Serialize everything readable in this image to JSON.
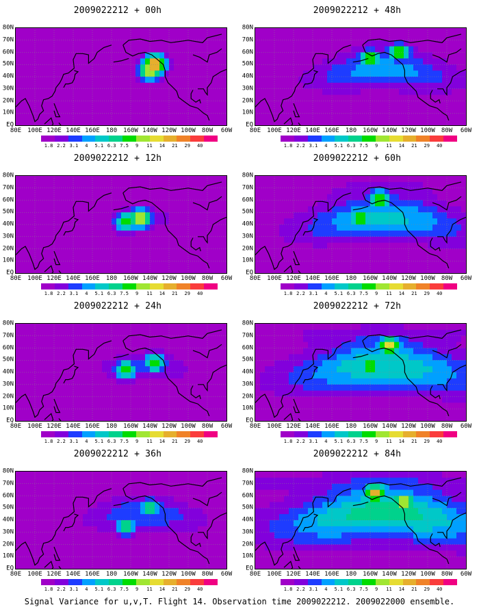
{
  "caption": "Signal Variance for u,v,T. Flight 14. Observation time 2009022212. 2009022000 ensemble.",
  "axes": {
    "y_labels": [
      "80N",
      "70N",
      "60N",
      "50N",
      "40N",
      "30N",
      "20N",
      "10N",
      "EQ"
    ],
    "x_labels": [
      "80E",
      "100E",
      "120E",
      "140E",
      "160E",
      "180",
      "160W",
      "140W",
      "120W",
      "100W",
      "80W",
      "60W"
    ]
  },
  "colorbar": {
    "labels": [
      "1.8",
      "2.2",
      "3.1",
      "4",
      "5.1",
      "6.3",
      "7.5",
      "9",
      "11",
      "14",
      "21",
      "29",
      "40"
    ],
    "colors": [
      "#a000c8",
      "#8200dc",
      "#1e3cff",
      "#00a0ff",
      "#00c8c8",
      "#00d28c",
      "#00dc00",
      "#a0e632",
      "#e6dc32",
      "#e6af2d",
      "#f08228",
      "#fa3c3c",
      "#f00082"
    ]
  },
  "chart_data": [
    {
      "type": "heatmap",
      "title": "2009022212 + 00h",
      "lead_hours": 0,
      "max_level": "40",
      "hotspots": [
        {
          "lon": -135,
          "lat": 50,
          "level": "29"
        },
        {
          "lon": -140,
          "lat": 45,
          "level": "14"
        }
      ]
    },
    {
      "type": "heatmap",
      "title": "2009022212 + 12h",
      "lead_hours": 12,
      "max_level": "21",
      "hotspots": [
        {
          "lon": -150,
          "lat": 45,
          "level": "14"
        },
        {
          "lon": -165,
          "lat": 42,
          "level": "9"
        }
      ]
    },
    {
      "type": "heatmap",
      "title": "2009022212 + 24h",
      "lead_hours": 24,
      "max_level": "14",
      "hotspots": [
        {
          "lon": -165,
          "lat": 42,
          "level": "9"
        },
        {
          "lon": -135,
          "lat": 48,
          "level": "9"
        }
      ]
    },
    {
      "type": "heatmap",
      "title": "2009022212 + 36h",
      "lead_hours": 36,
      "max_level": "11",
      "hotspots": [
        {
          "lon": -165,
          "lat": 35,
          "level": "7.5"
        },
        {
          "lon": -140,
          "lat": 50,
          "level": "7.5"
        }
      ]
    },
    {
      "type": "heatmap",
      "title": "2009022212 + 48h",
      "lead_hours": 48,
      "max_level": "11",
      "hotspots": [
        {
          "lon": -160,
          "lat": 55,
          "level": "9"
        },
        {
          "lon": -130,
          "lat": 60,
          "level": "9"
        }
      ]
    },
    {
      "type": "heatmap",
      "title": "2009022212 + 60h",
      "lead_hours": 60,
      "max_level": "14",
      "hotspots": [
        {
          "lon": -150,
          "lat": 60,
          "level": "11"
        },
        {
          "lon": -170,
          "lat": 45,
          "level": "9"
        }
      ]
    },
    {
      "type": "heatmap",
      "title": "2009022212 + 72h",
      "lead_hours": 72,
      "max_level": "21",
      "hotspots": [
        {
          "lon": -140,
          "lat": 62,
          "level": "14"
        },
        {
          "lon": -160,
          "lat": 45,
          "level": "11"
        }
      ]
    },
    {
      "type": "heatmap",
      "title": "2009022212 + 84h",
      "lead_hours": 84,
      "max_level": "29",
      "hotspots": [
        {
          "lon": -155,
          "lat": 62,
          "level": "21"
        },
        {
          "lon": -125,
          "lat": 55,
          "level": "14"
        }
      ]
    }
  ]
}
